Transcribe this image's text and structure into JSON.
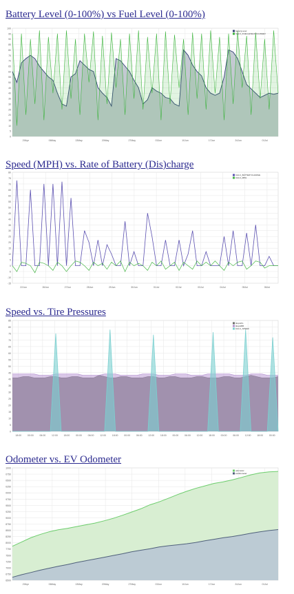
{
  "colors": {
    "link": "#2b2a8f",
    "grid": "#e6e6e6",
    "axis_text": "#666666",
    "battery_fill": "#c3c9d1",
    "battery_line": "#2f3f73",
    "fuel_line": "#3bb33b",
    "speed_line": "#5a4fb0",
    "charge_line": "#46b546",
    "tire_fill": "#8f928c",
    "tire_top": "#b38fd0",
    "tire_spike": "#7cd0d0",
    "odo_fill": "#d8eed2",
    "odo_line": "#6ccd6c",
    "evodo_fill": "#bccbd4",
    "evodo_line": "#4e5f7a"
  },
  "sections": [
    {
      "id": "battery-fuel",
      "title": "Battery Level (0-100%) vs Fuel Level (0-100%)"
    },
    {
      "id": "speed-charge",
      "title": "Speed (MPH) vs. Rate of Battery (Dis)charge"
    },
    {
      "id": "speed-tire",
      "title": "Speed vs. Tire Pressures"
    },
    {
      "id": "odometer",
      "title": "Odometer vs. EV Odometer"
    }
  ],
  "chart_data": [
    {
      "type": "area",
      "legend_position": "top-right",
      "grid": true,
      "ylim": [
        0,
        100
      ],
      "y_ticks": [
        0,
        5,
        10,
        15,
        20,
        25,
        30,
        35,
        40,
        45,
        50,
        55,
        60,
        65,
        70,
        75,
        80,
        85,
        90,
        95,
        100
      ],
      "x_ticks": [
        "29Apr",
        "06May",
        "13May",
        "20May",
        "27May",
        "03Jun",
        "10Jun",
        "17Jun",
        "24Jun",
        "01Jul"
      ],
      "series": [
        {
          "name": "batteryLevel",
          "values": [
            60,
            50,
            68,
            72,
            75,
            72,
            65,
            60,
            55,
            52,
            40,
            30,
            28,
            55,
            58,
            70,
            66,
            62,
            60,
            45,
            40,
            36,
            28,
            72,
            70,
            65,
            60,
            52,
            45,
            30,
            34,
            45,
            42,
            40,
            36,
            35,
            30,
            28,
            80,
            75,
            66,
            60,
            56,
            45,
            40,
            38,
            40,
            55,
            80,
            78,
            72,
            60,
            48,
            44,
            40,
            36,
            38,
            40,
            39,
            40
          ]
        },
        {
          "name": "CALC_FUELLEVELINCLUDEEV",
          "values": [
            95,
            10,
            95,
            20,
            90,
            30,
            98,
            15,
            92,
            40,
            95,
            25,
            98,
            35,
            90,
            20,
            95,
            50,
            97,
            15,
            93,
            30,
            96,
            45,
            90,
            20,
            95,
            35,
            98,
            25,
            92,
            40,
            95,
            15,
            97,
            30,
            94,
            45,
            90,
            20,
            96,
            35,
            95,
            25,
            98,
            40,
            92,
            15,
            95,
            30,
            97,
            45,
            93,
            20,
            96,
            35,
            90,
            25,
            98,
            40
          ]
        }
      ]
    },
    {
      "type": "line",
      "legend_position": "top-right",
      "grid": true,
      "ylim": [
        -15,
        80
      ],
      "y_ticks": [
        -15,
        -10,
        -5,
        0,
        5,
        10,
        15,
        20,
        25,
        30,
        35,
        40,
        45,
        50,
        55,
        60,
        65,
        70,
        75,
        80
      ],
      "x_ticks": [
        "22Jun",
        "26Jun",
        "27Jun",
        "28Jun",
        "29Jun",
        "30Jun",
        "01Jul",
        "02Jul",
        "03Jul",
        "04Jul",
        "05Jul",
        "06Jul"
      ],
      "series": [
        {
          "name": "CALC_BATTERYCHARGE",
          "values": [
            0,
            73,
            0,
            0,
            65,
            0,
            0,
            70,
            0,
            70,
            0,
            72,
            0,
            58,
            0,
            0,
            30,
            20,
            0,
            22,
            0,
            18,
            10,
            0,
            0,
            38,
            0,
            12,
            0,
            0,
            45,
            25,
            0,
            0,
            22,
            0,
            0,
            22,
            0,
            10,
            30,
            0,
            0,
            12,
            0,
            0,
            0,
            25,
            0,
            30,
            0,
            0,
            28,
            0,
            35,
            0,
            0,
            8,
            0,
            0
          ]
        },
        {
          "name": "CALC_MPH",
          "values": [
            0,
            -5,
            3,
            2,
            0,
            -6,
            3,
            2,
            0,
            -4,
            3,
            0,
            -5,
            0,
            4,
            3,
            0,
            -4,
            3,
            0,
            2,
            -3,
            3,
            0,
            4,
            -5,
            3,
            0,
            2,
            0,
            -4,
            3,
            0,
            4,
            -3,
            0,
            3,
            -4,
            3,
            0,
            -3,
            4,
            0,
            3,
            0,
            4,
            0,
            -4,
            3,
            0,
            3,
            4,
            -3,
            0,
            4,
            3,
            -2,
            0,
            0,
            0
          ]
        }
      ]
    },
    {
      "type": "area",
      "legend_position": "top-right",
      "grid": true,
      "ylim": [
        0,
        85
      ],
      "y_ticks": [
        0,
        5,
        10,
        15,
        20,
        25,
        30,
        35,
        40,
        45,
        50,
        55,
        60,
        65,
        70,
        75,
        80,
        85
      ],
      "x_ticks": [
        "18:00",
        "00:00",
        "06:00",
        "12:00",
        "18:00",
        "00:00",
        "06:00",
        "12:00",
        "18:00",
        "00:00",
        "06:00",
        "12:00",
        "18:00",
        "00:00",
        "06:00",
        "12:00",
        "18:00",
        "00:00",
        "06:00",
        "12:00",
        "18:00",
        "00:00"
      ],
      "series": [
        {
          "name": "tirepsiFL",
          "values": [
            41,
            41,
            42,
            42,
            41,
            41,
            41,
            42,
            42,
            41,
            41,
            42,
            42,
            41,
            41,
            41,
            43,
            42,
            41,
            41,
            42,
            42,
            41,
            41,
            41,
            42,
            42,
            41,
            41,
            42,
            42,
            41,
            41,
            41,
            42,
            42,
            41,
            41,
            41,
            42,
            42,
            41,
            41,
            42,
            43,
            42,
            41,
            41,
            41,
            42
          ]
        },
        {
          "name": "tirepsiRR",
          "values": [
            44,
            44,
            44,
            44,
            44,
            43,
            43,
            43,
            44,
            44,
            44,
            44,
            44,
            43,
            43,
            43,
            43,
            44,
            44,
            44,
            43,
            43,
            43,
            43,
            44,
            44,
            44,
            43,
            43,
            43,
            44,
            44,
            44,
            43,
            43,
            43,
            44,
            44,
            44,
            44,
            44,
            43,
            43,
            43,
            44,
            44,
            44,
            43,
            43,
            43
          ]
        },
        {
          "name": "CALC_SPEED",
          "values": [
            0,
            0,
            0,
            0,
            0,
            0,
            0,
            0,
            75,
            0,
            0,
            0,
            0,
            0,
            0,
            0,
            0,
            0,
            78,
            0,
            0,
            0,
            0,
            0,
            0,
            0,
            74,
            0,
            0,
            0,
            0,
            0,
            0,
            0,
            0,
            0,
            0,
            76,
            0,
            0,
            0,
            0,
            0,
            78,
            0,
            0,
            0,
            0,
            72,
            0
          ]
        }
      ]
    },
    {
      "type": "area",
      "legend_position": "top-right",
      "grid": true,
      "ylim": [
        6500,
        11000
      ],
      "y_ticks": [
        6500,
        6750,
        7000,
        7250,
        7500,
        7750,
        8000,
        8250,
        8500,
        8750,
        9000,
        9250,
        9500,
        9750,
        10000,
        10250,
        10500,
        10750,
        11000
      ],
      "x_ticks": [
        "29Apr",
        "06May",
        "13May",
        "20May",
        "27May",
        "03Jun",
        "10Jun",
        "17Jun",
        "24Jun",
        "01Jul"
      ],
      "series": [
        {
          "name": "odometer",
          "values": [
            7860,
            8030,
            8200,
            8330,
            8440,
            8520,
            8580,
            8650,
            8720,
            8790,
            8880,
            8980,
            9100,
            9230,
            9360,
            9520,
            9640,
            9780,
            9930,
            10060,
            10180,
            10280,
            10380,
            10440,
            10520,
            10620,
            10720,
            10800,
            10840,
            10860
          ]
        },
        {
          "name": "evOdometer",
          "values": [
            6620,
            6720,
            6810,
            6900,
            6980,
            7060,
            7130,
            7210,
            7280,
            7350,
            7420,
            7490,
            7560,
            7640,
            7700,
            7760,
            7830,
            7880,
            7920,
            7960,
            8010,
            8080,
            8140,
            8200,
            8250,
            8310,
            8380,
            8440,
            8490,
            8530
          ]
        }
      ]
    }
  ]
}
